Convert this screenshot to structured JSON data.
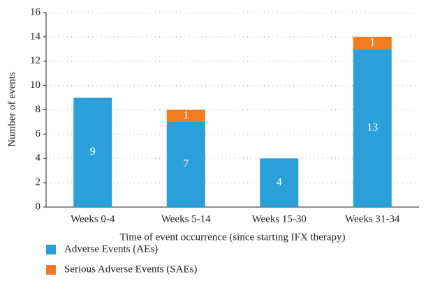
{
  "chart_data": {
    "type": "stacked_bar",
    "x_label": "Time of event occurrence (since starting IFX therapy)",
    "y_label": "Number of events",
    "categories": [
      "Weeks 0-4",
      "Weeks 5-14",
      "Weeks 15-30",
      "Weeks 31-34"
    ],
    "series": [
      {
        "name": "Adverse Events (AEs)",
        "color": "#2b9fd9",
        "values": [
          9,
          7,
          4,
          13
        ]
      },
      {
        "name": "Serious Adverse Events (SAEs)",
        "color": "#f27c21",
        "values": [
          0,
          1,
          0,
          1
        ]
      }
    ],
    "ylim": [
      0,
      16
    ],
    "yticks": [
      0,
      2,
      4,
      6,
      8,
      10,
      12,
      14,
      16
    ],
    "grid": true,
    "legend": "bottom-left"
  }
}
